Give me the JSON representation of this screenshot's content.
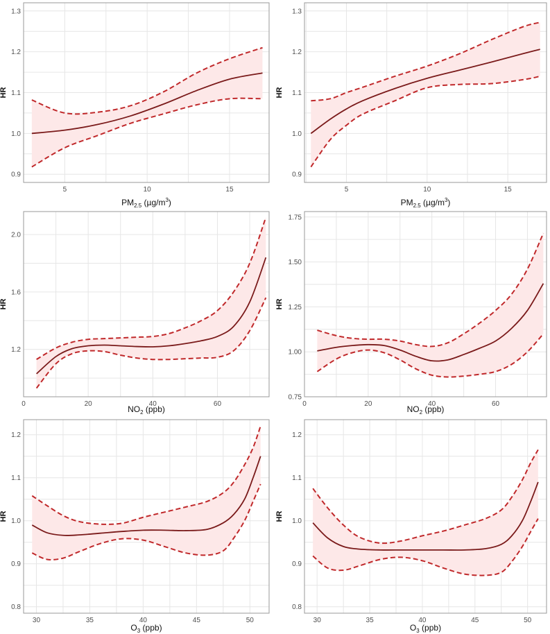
{
  "colors": {
    "line": "#c0282a",
    "line_dark": "#7a1a1a",
    "band": "#fde8e8"
  },
  "chart_data": [
    {
      "type": "line",
      "xlabel": {
        "base": "PM",
        "sub": "2.5",
        "tail": " (µg/m",
        "sup": "3",
        "end": ")"
      },
      "ylabel": "HR",
      "xlim": [
        2.5,
        17.4
      ],
      "ylim": [
        0.88,
        1.32
      ],
      "xticks": [
        5,
        10,
        15
      ],
      "yticks": [
        0.9,
        1.0,
        1.1,
        1.2,
        1.3
      ],
      "ytick_labels": [
        "0.9",
        "1.0",
        "1.1",
        "1.2",
        "1.3"
      ],
      "x": [
        3,
        5,
        7,
        9,
        11,
        13,
        15,
        17
      ],
      "estimate": [
        1.0,
        1.008,
        1.022,
        1.043,
        1.072,
        1.105,
        1.133,
        1.148
      ],
      "upper": [
        1.082,
        1.05,
        1.052,
        1.068,
        1.102,
        1.148,
        1.183,
        1.21
      ],
      "lower": [
        0.918,
        0.965,
        0.995,
        1.025,
        1.048,
        1.07,
        1.085,
        1.085
      ]
    },
    {
      "type": "line",
      "xlabel": {
        "base": "PM",
        "sub": "2.5",
        "tail": " (µg/m",
        "sup": "3",
        "end": ")"
      },
      "ylabel": "HR",
      "xlim": [
        2.4,
        17.4
      ],
      "ylim": [
        0.88,
        1.32
      ],
      "xticks": [
        5,
        10,
        15
      ],
      "yticks": [
        0.9,
        1.0,
        1.1,
        1.2,
        1.3
      ],
      "ytick_labels": [
        "0.9",
        "1.0",
        "1.1",
        "1.2",
        "1.3"
      ],
      "x": [
        2.8,
        4,
        5,
        6,
        8,
        10,
        12,
        14,
        16,
        17
      ],
      "estimate": [
        1.0,
        1.035,
        1.06,
        1.08,
        1.11,
        1.135,
        1.155,
        1.175,
        1.196,
        1.206
      ],
      "upper": [
        1.08,
        1.085,
        1.1,
        1.113,
        1.14,
        1.165,
        1.195,
        1.23,
        1.262,
        1.272
      ],
      "lower": [
        0.918,
        0.985,
        1.02,
        1.047,
        1.08,
        1.112,
        1.12,
        1.122,
        1.132,
        1.14
      ]
    },
    {
      "type": "line",
      "xlabel": {
        "base": "NO",
        "sub": "2",
        "tail": " (ppb)",
        "sup": "",
        "end": ""
      },
      "ylabel": "HR",
      "xlim": [
        0,
        76
      ],
      "ylim": [
        0.87,
        2.16
      ],
      "xticks": [
        0,
        20,
        40,
        60
      ],
      "yticks": [
        1.2,
        1.6,
        2.0
      ],
      "ytick_labels": [
        "1.2",
        "1.6",
        "2.0"
      ],
      "x": [
        4,
        10,
        15,
        20,
        25,
        30,
        35,
        40,
        45,
        50,
        55,
        60,
        65,
        70,
        75
      ],
      "estimate": [
        1.03,
        1.15,
        1.205,
        1.225,
        1.23,
        1.225,
        1.22,
        1.218,
        1.225,
        1.24,
        1.26,
        1.29,
        1.36,
        1.53,
        1.84
      ],
      "upper": [
        1.13,
        1.21,
        1.25,
        1.27,
        1.275,
        1.28,
        1.285,
        1.29,
        1.31,
        1.35,
        1.4,
        1.47,
        1.6,
        1.8,
        2.12
      ],
      "lower": [
        0.93,
        1.1,
        1.17,
        1.19,
        1.185,
        1.16,
        1.14,
        1.13,
        1.13,
        1.135,
        1.14,
        1.145,
        1.19,
        1.33,
        1.56
      ]
    },
    {
      "type": "line",
      "xlabel": {
        "base": "NO",
        "sub": "2",
        "tail": " (ppb)",
        "sup": "",
        "end": ""
      },
      "ylabel": "HR",
      "xlim": [
        0,
        76
      ],
      "ylim": [
        0.75,
        1.78
      ],
      "xticks": [
        0,
        20,
        40,
        60
      ],
      "yticks": [
        0.75,
        1.0,
        1.25,
        1.5,
        1.75
      ],
      "ytick_labels": [
        "0.75",
        "1.00",
        "1.25",
        "1.50",
        "1.75"
      ],
      "x": [
        4,
        10,
        15,
        20,
        25,
        30,
        35,
        40,
        45,
        50,
        55,
        60,
        65,
        70,
        75
      ],
      "estimate": [
        1.005,
        1.025,
        1.035,
        1.04,
        1.035,
        1.01,
        0.975,
        0.95,
        0.955,
        0.985,
        1.02,
        1.06,
        1.13,
        1.23,
        1.38
      ],
      "upper": [
        1.12,
        1.09,
        1.075,
        1.07,
        1.07,
        1.06,
        1.04,
        1.03,
        1.05,
        1.1,
        1.16,
        1.23,
        1.32,
        1.46,
        1.66
      ],
      "lower": [
        0.89,
        0.96,
        0.995,
        1.01,
        0.995,
        0.955,
        0.905,
        0.87,
        0.86,
        0.865,
        0.875,
        0.89,
        0.93,
        1.0,
        1.1
      ]
    },
    {
      "type": "line",
      "xlabel": {
        "base": "O",
        "sub": "3",
        "tail": " (ppb)",
        "sup": "",
        "end": ""
      },
      "ylabel": "HR",
      "xlim": [
        28.8,
        51.8
      ],
      "ylim": [
        0.785,
        1.235
      ],
      "xticks": [
        30,
        35,
        40,
        45,
        50
      ],
      "yticks": [
        0.8,
        0.9,
        1.0,
        1.1,
        1.2
      ],
      "ytick_labels": [
        "0.8",
        "0.9",
        "1.0",
        "1.1",
        "1.2"
      ],
      "x": [
        29.6,
        31,
        32.5,
        34,
        36,
        38,
        40,
        42,
        44,
        46,
        47.5,
        48.5,
        49.5,
        50.3,
        51
      ],
      "estimate": [
        0.99,
        0.972,
        0.966,
        0.967,
        0.971,
        0.975,
        0.978,
        0.978,
        0.977,
        0.98,
        0.995,
        1.015,
        1.05,
        1.1,
        1.15
      ],
      "upper": [
        1.058,
        1.035,
        1.012,
        0.998,
        0.992,
        0.994,
        1.008,
        1.02,
        1.032,
        1.045,
        1.065,
        1.09,
        1.13,
        1.17,
        1.22
      ],
      "lower": [
        0.925,
        0.91,
        0.913,
        0.928,
        0.947,
        0.958,
        0.955,
        0.94,
        0.925,
        0.92,
        0.93,
        0.96,
        1.0,
        1.045,
        1.085
      ]
    },
    {
      "type": "line",
      "xlabel": {
        "base": "O",
        "sub": "3",
        "tail": " (ppb)",
        "sup": "",
        "end": ""
      },
      "ylabel": "HR",
      "xlim": [
        28.8,
        51.8
      ],
      "ylim": [
        0.785,
        1.235
      ],
      "xticks": [
        30,
        35,
        40,
        45,
        50
      ],
      "yticks": [
        0.8,
        0.9,
        1.0,
        1.1,
        1.2
      ],
      "ytick_labels": [
        "0.8",
        "0.9",
        "1.0",
        "1.1",
        "1.2"
      ],
      "x": [
        29.6,
        31,
        32.5,
        34,
        36,
        38,
        40,
        42,
        44,
        46,
        47.5,
        48.5,
        49.5,
        50.3,
        51
      ],
      "estimate": [
        0.995,
        0.96,
        0.94,
        0.934,
        0.932,
        0.932,
        0.932,
        0.932,
        0.932,
        0.935,
        0.945,
        0.965,
        1.0,
        1.045,
        1.09
      ],
      "upper": [
        1.075,
        1.03,
        0.99,
        0.962,
        0.948,
        0.953,
        0.965,
        0.976,
        0.99,
        1.005,
        1.025,
        1.055,
        1.095,
        1.135,
        1.165
      ],
      "lower": [
        0.918,
        0.89,
        0.885,
        0.895,
        0.91,
        0.915,
        0.907,
        0.89,
        0.876,
        0.873,
        0.88,
        0.905,
        0.94,
        0.975,
        1.005
      ]
    }
  ]
}
